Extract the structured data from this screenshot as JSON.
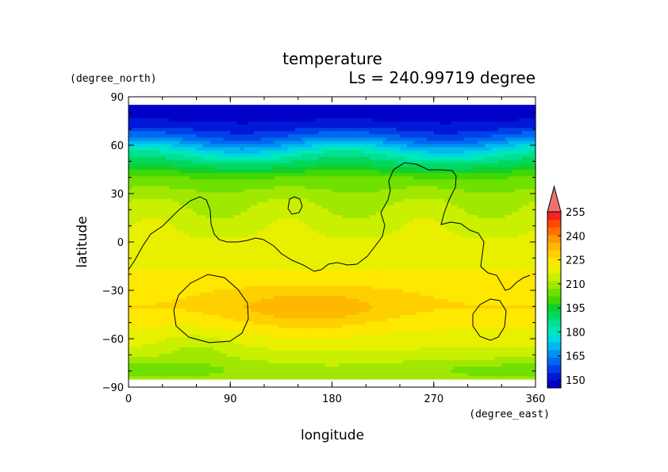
{
  "chart_data": {
    "type": "heatmap",
    "title": "temperature",
    "subtitle": "Ls = 240.99719 degree",
    "xlabel": "longitude",
    "ylabel": "latitude",
    "xunit": "(degree_east)",
    "yunit": "(degree_north)",
    "xlim": [
      0,
      360
    ],
    "ylim": [
      -90,
      90
    ],
    "data_lat_range": [
      -85,
      85
    ],
    "x_ticks": [
      0,
      90,
      180,
      270,
      360
    ],
    "y_ticks": [
      90,
      60,
      30,
      0,
      -30,
      -60,
      -90
    ],
    "x_tick_labels": [
      "0",
      "90",
      "180",
      "270",
      "360"
    ],
    "y_tick_labels": [
      "90",
      "60",
      "30",
      "0",
      "−30",
      "−60",
      "−90"
    ],
    "colorbar": {
      "levels": [
        145,
        150,
        155,
        160,
        165,
        170,
        175,
        180,
        185,
        190,
        195,
        200,
        205,
        210,
        215,
        220,
        225,
        230,
        235,
        240,
        245,
        250,
        255,
        260
      ],
      "colors": [
        "#0000c8",
        "#0018d8",
        "#0040e8",
        "#0068f0",
        "#0090f0",
        "#00b8f0",
        "#00d8e0",
        "#00e8b8",
        "#00e090",
        "#00d860",
        "#10d030",
        "#40d800",
        "#70e000",
        "#a0e800",
        "#c8f000",
        "#e8f000",
        "#ffe800",
        "#ffd000",
        "#ffb800",
        "#ff9800",
        "#ff7000",
        "#ff4800",
        "#f82020",
        "#f07070"
      ],
      "tick_labels": [
        "150",
        "165",
        "180",
        "195",
        "210",
        "225",
        "240",
        "255"
      ],
      "tick_values": [
        150,
        165,
        180,
        195,
        210,
        225,
        240,
        255
      ],
      "extend": "max"
    },
    "field_description": {
      "lat_profile_lat": [
        -85,
        -78,
        -70,
        -62,
        -50,
        -40,
        -30,
        -20,
        -10,
        0,
        10,
        20,
        30,
        40,
        45,
        50,
        55,
        60,
        65,
        70,
        75,
        80,
        85
      ],
      "lat_profile_temp": [
        212,
        214,
        218,
        222,
        226,
        230,
        229,
        226,
        223,
        221,
        219,
        216,
        212,
        205,
        198,
        190,
        182,
        172,
        162,
        155,
        150,
        148,
        147
      ],
      "warm_core": {
        "lon": 160,
        "lat": -42,
        "temp": 238
      }
    }
  }
}
